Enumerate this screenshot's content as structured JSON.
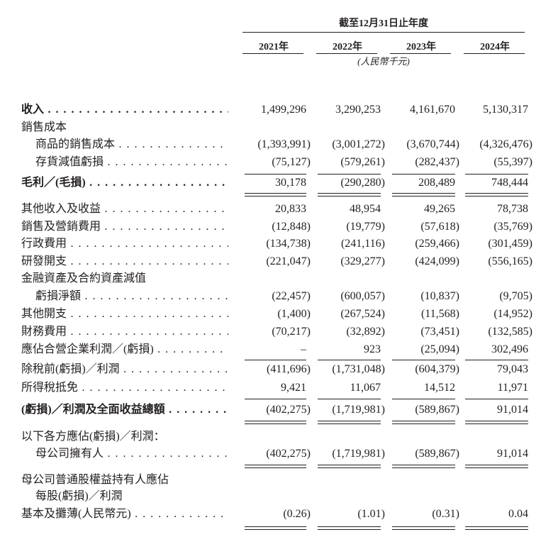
{
  "header": {
    "period_title": "截至12月31日止年度",
    "years": [
      "2021年",
      "2022年",
      "2023年",
      "2024年"
    ],
    "unit": "(人民幣千元)"
  },
  "rows": [
    {
      "label": "收入",
      "values": [
        "1,499,296",
        "3,290,253",
        "4,161,670",
        "5,130,317"
      ]
    },
    {
      "label": "銷售成本",
      "values": []
    },
    {
      "label": "商品的銷售成本",
      "values": [
        "(1,393,991)",
        "(3,001,272)",
        "(3,670,744)",
        "(4,326,476)"
      ]
    },
    {
      "label": "存貨減值虧損",
      "values": [
        "(75,127)",
        "(579,261)",
        "(282,437)",
        "(55,397)"
      ]
    },
    {
      "label": "毛利／(毛損)",
      "values": [
        "30,178",
        "(290,280)",
        "208,489",
        "748,444"
      ]
    },
    {
      "label": "其他收入及收益",
      "values": [
        "20,833",
        "48,954",
        "49,265",
        "78,738"
      ]
    },
    {
      "label": "銷售及營銷費用",
      "values": [
        "(12,848)",
        "(19,779)",
        "(57,618)",
        "(35,769)"
      ]
    },
    {
      "label": "行政費用",
      "values": [
        "(134,738)",
        "(241,116)",
        "(259,466)",
        "(301,459)"
      ]
    },
    {
      "label": "研發開支",
      "values": [
        "(221,047)",
        "(329,277)",
        "(424,099)",
        "(556,165)"
      ]
    },
    {
      "label": "金融資產及合約資產減值",
      "values": []
    },
    {
      "label": "虧損淨額",
      "values": [
        "(22,457)",
        "(600,057)",
        "(10,837)",
        "(9,705)"
      ]
    },
    {
      "label": "其他開支",
      "values": [
        "(1,400)",
        "(267,524)",
        "(11,568)",
        "(14,952)"
      ]
    },
    {
      "label": "財務費用",
      "values": [
        "(70,217)",
        "(32,892)",
        "(73,451)",
        "(132,585)"
      ]
    },
    {
      "label": "應佔合營企業利潤／(虧損)",
      "values": [
        "–",
        "923",
        "(25,094)",
        "302,496"
      ]
    },
    {
      "label": "除稅前(虧損)／利潤",
      "values": [
        "(411,696)",
        "(1,731,048)",
        "(604,379)",
        "79,043"
      ]
    },
    {
      "label": "所得稅抵免",
      "values": [
        "9,421",
        "11,067",
        "14,512",
        "11,971"
      ]
    },
    {
      "label": "(虧損)／利潤及全面收益總額",
      "values": [
        "(402,275)",
        "(1,719,981)",
        "(589,867)",
        "91,014"
      ]
    },
    {
      "label": "以下各方應佔(虧損)／利潤：",
      "values": []
    },
    {
      "label": "母公司擁有人",
      "values": [
        "(402,275)",
        "(1,719,981)",
        "(589,867)",
        "91,014"
      ]
    },
    {
      "label": "母公司普通股權益持有人應佔",
      "values": []
    },
    {
      "label": "每股(虧損)／利潤",
      "values": []
    },
    {
      "label": "基本及攤薄(人民幣元)",
      "values": [
        "(0.26)",
        "(1.01)",
        "(0.31)",
        "0.04"
      ]
    }
  ]
}
